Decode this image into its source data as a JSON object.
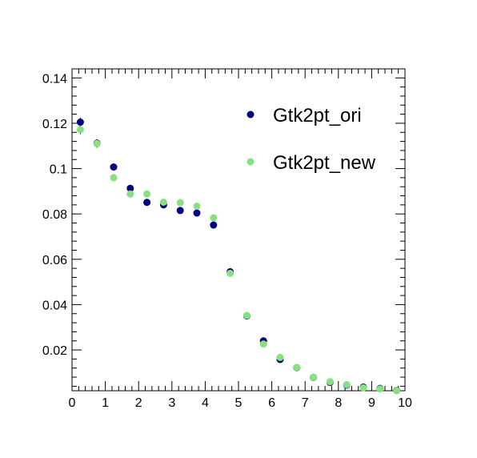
{
  "chart_data": {
    "type": "scatter",
    "title": "",
    "xlabel": "",
    "ylabel": "",
    "xlim": [
      0,
      10
    ],
    "ylim": [
      0.002,
      0.144
    ],
    "x_ticks": [
      "0",
      "1",
      "2",
      "3",
      "4",
      "5",
      "6",
      "7",
      "8",
      "9",
      "10"
    ],
    "y_ticks": [
      "0.02",
      "0.04",
      "0.06",
      "0.08",
      "0.1",
      "0.12",
      "0.14"
    ],
    "grid": false,
    "legend_position": "top-right",
    "series": [
      {
        "name": "Gtk2pt_ori",
        "color": "#000080",
        "x": [
          0.25,
          0.75,
          1.25,
          1.75,
          2.25,
          2.75,
          3.25,
          3.75,
          4.25,
          4.75,
          5.25,
          5.75,
          6.25,
          6.75,
          7.25,
          7.75,
          8.25,
          8.75,
          9.25,
          9.75
        ],
        "y": [
          0.1205,
          0.1112,
          0.1007,
          0.0913,
          0.0851,
          0.084,
          0.0815,
          0.0804,
          0.0751,
          0.0545,
          0.035,
          0.024,
          0.0158,
          0.0122,
          0.0079,
          0.0057,
          0.0045,
          0.0036,
          0.003,
          0.0021
        ],
        "err": [
          0.002,
          0.0018,
          0.0016,
          0.0015,
          0.0013,
          0.0013,
          0.0012,
          0.0012,
          0.0011,
          0.0009,
          0.0007,
          0.0006,
          0.0005,
          0.0004,
          0.0004,
          0.0003,
          0.0003,
          0.0003,
          0.0002,
          0.0002
        ]
      },
      {
        "name": "Gtk2pt_new",
        "color": "#88e080",
        "x": [
          0.25,
          0.75,
          1.25,
          1.75,
          2.25,
          2.75,
          3.25,
          3.75,
          4.25,
          4.75,
          5.25,
          5.75,
          6.25,
          6.75,
          7.25,
          7.75,
          8.25,
          8.75,
          9.25,
          9.75
        ],
        "y": [
          0.1172,
          0.111,
          0.096,
          0.0888,
          0.0888,
          0.0852,
          0.085,
          0.0834,
          0.0783,
          0.0538,
          0.0352,
          0.0226,
          0.0167,
          0.0123,
          0.008,
          0.006,
          0.0047,
          0.0033,
          0.0028,
          0.002
        ],
        "err": [
          0.002,
          0.0018,
          0.0016,
          0.0015,
          0.0013,
          0.0013,
          0.0012,
          0.0012,
          0.0011,
          0.0009,
          0.0007,
          0.0006,
          0.0005,
          0.0004,
          0.0004,
          0.0003,
          0.0003,
          0.0003,
          0.0002,
          0.0002
        ]
      }
    ]
  }
}
